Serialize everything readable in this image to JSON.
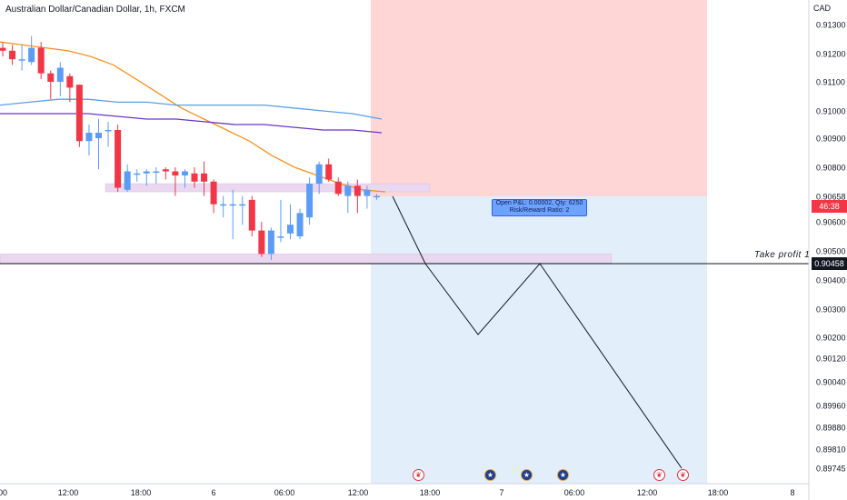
{
  "title": "Australian Dollar/Canadian Dollar, 1h, FXCM",
  "currency": "CAD",
  "take_profit_label": "Take profit 1",
  "take_profit_price": "0.90458",
  "last_price": "0.90658",
  "countdown": "46:38",
  "position_info": {
    "line1": "Open P&L: 0.00002, Qty: 6250",
    "line2": "Risk/Reward Ratio: 2"
  },
  "colors": {
    "up": "#5b9cf6",
    "down": "#f23645",
    "ma_fast": "#f7931a",
    "ma_mid": "#5b9ee8",
    "ma_slow": "#6a35c9",
    "stop_zone": "#ffd6d6",
    "target_zone": "#e3eefb",
    "level_zone": "#ead7f0"
  },
  "chart_data": {
    "type": "candlestick",
    "title": "Australian Dollar/Canadian Dollar, 1h, FXCM",
    "y_axis": {
      "ticks": [
        "0.91300",
        "0.91200",
        "0.91100",
        "0.91000",
        "0.90900",
        "0.90800",
        "0.90658",
        "0.90600",
        "0.90500",
        "0.90458",
        "0.90400",
        "0.90300",
        "0.90200",
        "0.90120",
        "0.90040",
        "0.89960",
        "0.89880",
        "0.89810",
        "0.89745"
      ],
      "ylim": [
        0.8972,
        0.9138
      ]
    },
    "x_axis": {
      "ticks": [
        "00",
        "12:00",
        "18:00",
        "6",
        "06:00",
        "12:00",
        "18:00",
        "7",
        "06:00",
        "12:00",
        "18:00",
        "8"
      ]
    },
    "candles": [
      {
        "o": 0.9122,
        "h": 0.9124,
        "l": 0.9119,
        "c": 0.9121
      },
      {
        "o": 0.9121,
        "h": 0.9123,
        "l": 0.9116,
        "c": 0.9118
      },
      {
        "o": 0.9118,
        "h": 0.9123,
        "l": 0.9114,
        "c": 0.9118
      },
      {
        "o": 0.9117,
        "h": 0.9126,
        "l": 0.9116,
        "c": 0.9122
      },
      {
        "o": 0.9122,
        "h": 0.9124,
        "l": 0.9111,
        "c": 0.9113
      },
      {
        "o": 0.9113,
        "h": 0.9114,
        "l": 0.9104,
        "c": 0.911
      },
      {
        "o": 0.911,
        "h": 0.9117,
        "l": 0.9105,
        "c": 0.9115
      },
      {
        "o": 0.9112,
        "h": 0.9113,
        "l": 0.9103,
        "c": 0.9108
      },
      {
        "o": 0.9109,
        "h": 0.9109,
        "l": 0.9087,
        "c": 0.9089
      },
      {
        "o": 0.9089,
        "h": 0.9095,
        "l": 0.9084,
        "c": 0.9092
      },
      {
        "o": 0.909,
        "h": 0.9097,
        "l": 0.9079,
        "c": 0.9092
      },
      {
        "o": 0.9093,
        "h": 0.9096,
        "l": 0.9087,
        "c": 0.9093
      },
      {
        "o": 0.9093,
        "h": 0.9095,
        "l": 0.9068,
        "c": 0.907
      },
      {
        "o": 0.9069,
        "h": 0.9081,
        "l": 0.9068,
        "c": 0.9078
      },
      {
        "o": 0.9077,
        "h": 0.9079,
        "l": 0.9073,
        "c": 0.9077
      },
      {
        "o": 0.9077,
        "h": 0.9079,
        "l": 0.9071,
        "c": 0.9078
      },
      {
        "o": 0.9078,
        "h": 0.908,
        "l": 0.9072,
        "c": 0.9078
      },
      {
        "o": 0.9079,
        "h": 0.908,
        "l": 0.9074,
        "c": 0.9078
      },
      {
        "o": 0.9078,
        "h": 0.908,
        "l": 0.9066,
        "c": 0.9076
      },
      {
        "o": 0.9076,
        "h": 0.9079,
        "l": 0.907,
        "c": 0.9078
      },
      {
        "o": 0.9077,
        "h": 0.908,
        "l": 0.907,
        "c": 0.9073
      },
      {
        "o": 0.9077,
        "h": 0.9082,
        "l": 0.9066,
        "c": 0.9073
      },
      {
        "o": 0.9073,
        "h": 0.9074,
        "l": 0.9062,
        "c": 0.9064
      },
      {
        "o": 0.9064,
        "h": 0.9066,
        "l": 0.9061,
        "c": 0.9064
      },
      {
        "o": 0.9064,
        "h": 0.9069,
        "l": 0.9054,
        "c": 0.9064
      },
      {
        "o": 0.9064,
        "h": 0.9066,
        "l": 0.9059,
        "c": 0.9064
      },
      {
        "o": 0.9065,
        "h": 0.9066,
        "l": 0.9055,
        "c": 0.9057
      },
      {
        "o": 0.9057,
        "h": 0.906,
        "l": 0.9048,
        "c": 0.9049
      },
      {
        "o": 0.9049,
        "h": 0.9058,
        "l": 0.9047,
        "c": 0.9057
      },
      {
        "o": 0.9055,
        "h": 0.9065,
        "l": 0.9053,
        "c": 0.9055
      },
      {
        "o": 0.9056,
        "h": 0.9064,
        "l": 0.9054,
        "c": 0.9059
      },
      {
        "o": 0.9055,
        "h": 0.9063,
        "l": 0.9054,
        "c": 0.9062
      },
      {
        "o": 0.9061,
        "h": 0.9075,
        "l": 0.9059,
        "c": 0.9072
      },
      {
        "o": 0.9072,
        "h": 0.9082,
        "l": 0.9067,
        "c": 0.9081
      },
      {
        "o": 0.9081,
        "h": 0.9083,
        "l": 0.9073,
        "c": 0.9074
      },
      {
        "o": 0.9073,
        "h": 0.9075,
        "l": 0.9066,
        "c": 0.9067
      },
      {
        "o": 0.9066,
        "h": 0.9073,
        "l": 0.9062,
        "c": 0.9071
      },
      {
        "o": 0.9071,
        "h": 0.9074,
        "l": 0.9062,
        "c": 0.9066
      },
      {
        "o": 0.9066,
        "h": 0.9071,
        "l": 0.9063,
        "c": 0.9069
      },
      {
        "o": 0.9066,
        "h": 0.9067,
        "l": 0.9065,
        "c": 0.9066
      }
    ],
    "moving_averages": [
      {
        "points": [
          0.9124,
          0.9123,
          0.9122,
          0.9121,
          0.9119,
          0.9116,
          0.9111,
          0.9106,
          0.9101,
          0.9097,
          0.9093,
          0.9089,
          0.9084,
          0.908,
          0.9076,
          0.9072,
          0.9069,
          0.9068
        ]
      },
      {
        "points": [
          0.9102,
          0.9103,
          0.9104,
          0.9104,
          0.9103,
          0.9103,
          0.9102,
          0.9102,
          0.9102,
          0.9102,
          0.9101,
          0.91,
          0.9099,
          0.9097
        ]
      },
      {
        "points": [
          0.9099,
          0.9099,
          0.9099,
          0.9099,
          0.9098,
          0.9097,
          0.9097,
          0.9096,
          0.9095,
          0.9095,
          0.9094,
          0.9093,
          0.9093,
          0.9092
        ]
      }
    ],
    "zones": {
      "level_upper": [
        0.9068,
        0.9072
      ],
      "level_lower": [
        0.9046,
        0.9049
      ],
      "stop_loss": 0.9138,
      "entry": 0.90658,
      "take_profit": 0.89745
    },
    "projection": [
      0.90658,
      0.90458,
      0.9021,
      0.90458,
      0.89745
    ],
    "events": [
      "ca",
      "au",
      "au",
      "au",
      "ca",
      "ca"
    ]
  }
}
